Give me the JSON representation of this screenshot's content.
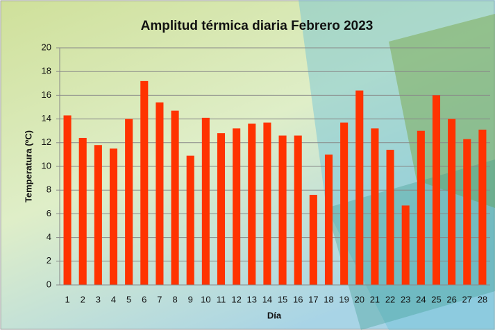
{
  "chart_data": {
    "type": "bar",
    "title": "Amplitud térmica diaria Febrero 2023",
    "x_label": "Día",
    "y_label": "Temperatura (ºC)",
    "categories": [
      "1",
      "2",
      "3",
      "4",
      "5",
      "6",
      "7",
      "8",
      "9",
      "10",
      "11",
      "12",
      "13",
      "14",
      "15",
      "16",
      "17",
      "18",
      "19",
      "20",
      "21",
      "22",
      "23",
      "24",
      "25",
      "26",
      "27",
      "28"
    ],
    "values": [
      14.3,
      12.4,
      11.8,
      11.5,
      14.0,
      17.2,
      15.4,
      14.7,
      10.9,
      14.1,
      12.8,
      13.2,
      13.6,
      13.7,
      12.6,
      12.6,
      7.6,
      11.0,
      13.7,
      16.4,
      13.2,
      11.4,
      6.7,
      13.0,
      16.0,
      14.0,
      12.3,
      13.1
    ],
    "color": "#ff3300",
    "ylim": [
      0,
      20
    ],
    "yticks": [
      0,
      2,
      4,
      6,
      8,
      10,
      12,
      14,
      16,
      18,
      20
    ],
    "grid": true
  }
}
